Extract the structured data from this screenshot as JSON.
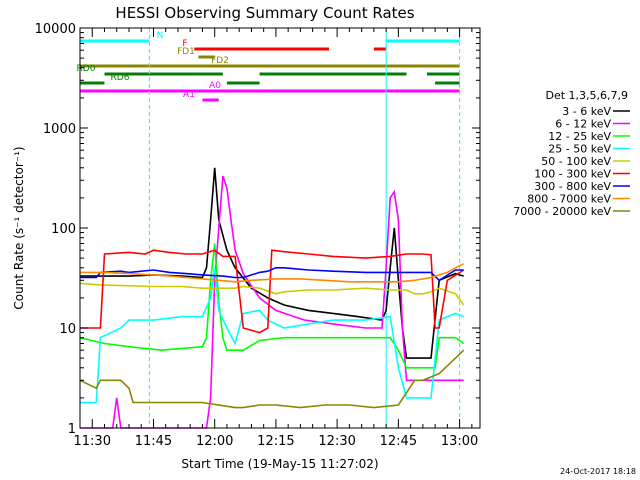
{
  "chart_data": {
    "type": "line",
    "title": "HESSI Observing Summary Count Rates",
    "xlabel": "Start Time (19-May-15 11:27:02)",
    "ylabel": "Count Rate (s⁻¹ detector⁻¹)",
    "yscale": "log",
    "ylim": [
      1,
      10000
    ],
    "xlim_minutes": [
      0,
      98
    ],
    "x_tick_labels": [
      "11:30",
      "11:45",
      "12:00",
      "12:15",
      "12:30",
      "12:45",
      "13:00"
    ],
    "x_tick_minutes": [
      3,
      18,
      33,
      48,
      63,
      78,
      93
    ],
    "y_tick_labels": [
      "1",
      "10",
      "100",
      "1000",
      "10000"
    ],
    "legend_title": "Det 1,3,5,6,7,9",
    "legend_position": "right",
    "series": [
      {
        "name": "3 - 6 keV",
        "color": "#000000",
        "x": [
          0,
          12,
          18,
          25,
          30,
          31,
          32,
          33,
          34,
          36,
          38,
          42,
          46,
          50,
          56,
          62,
          68,
          74,
          75,
          76,
          77,
          78,
          79,
          80,
          86,
          88,
          92,
          94
        ],
        "y": [
          33,
          33,
          34,
          33,
          32,
          40,
          120,
          400,
          120,
          60,
          40,
          25,
          20,
          17,
          15,
          14,
          13,
          12,
          15,
          40,
          100,
          30,
          10,
          5,
          5,
          30,
          35,
          33
        ]
      },
      {
        "name": "6 - 12 keV",
        "color": "#ff00ff",
        "x": [
          0,
          8,
          9,
          10,
          30,
          31,
          32,
          33,
          34,
          35,
          36,
          37,
          38,
          40,
          44,
          48,
          55,
          62,
          70,
          74,
          75,
          76,
          77,
          78,
          79,
          80,
          94
        ],
        "y": [
          1,
          1,
          2,
          1,
          1,
          1,
          2,
          30,
          100,
          330,
          250,
          120,
          60,
          35,
          20,
          15,
          12,
          11,
          10,
          10,
          40,
          200,
          230,
          120,
          10,
          3,
          3
        ]
      },
      {
        "name": "12 - 25 keV",
        "color": "#00ff00",
        "x": [
          0,
          6,
          12,
          20,
          30,
          31,
          32,
          33,
          34,
          35,
          36,
          38,
          40,
          44,
          50,
          56,
          62,
          70,
          76,
          78,
          80,
          86,
          87,
          88,
          92,
          94
        ],
        "y": [
          8,
          7,
          6.5,
          6,
          6.5,
          8,
          30,
          70,
          18,
          8,
          6,
          6,
          6,
          7.5,
          8,
          8,
          8,
          8,
          8,
          6,
          4,
          4,
          4,
          8,
          8,
          7
        ]
      },
      {
        "name": "25 - 50 keV",
        "color": "#00ffff",
        "x": [
          0,
          4,
          5,
          10,
          12,
          18,
          25,
          30,
          32,
          33,
          34,
          36,
          38,
          40,
          44,
          46,
          50,
          56,
          62,
          70,
          76,
          78,
          80,
          82,
          86,
          88,
          92,
          94
        ],
        "y": [
          1.8,
          1.8,
          8,
          10,
          12,
          12,
          13,
          13,
          20,
          40,
          15,
          10,
          7,
          14,
          15,
          12,
          10,
          11,
          12,
          12,
          13,
          4,
          2,
          2,
          2,
          12,
          14,
          13
        ]
      },
      {
        "name": "50 - 100 keV",
        "color": "#cccc00",
        "x": [
          0,
          5,
          18,
          25,
          30,
          35,
          38,
          40,
          44,
          48,
          50,
          56,
          62,
          70,
          76,
          80,
          82,
          84,
          86,
          88,
          92,
          94
        ],
        "y": [
          28,
          27,
          26,
          26,
          25,
          25,
          25,
          26,
          25,
          22,
          23,
          24,
          24,
          25,
          24,
          24,
          22,
          22,
          23,
          25,
          22,
          17
        ]
      },
      {
        "name": "100 - 300 keV",
        "color": "#ff0000",
        "x": [
          0,
          4,
          5,
          6,
          12,
          16,
          18,
          22,
          26,
          30,
          33,
          35,
          38,
          40,
          44,
          46,
          47,
          50,
          56,
          62,
          70,
          76,
          80,
          84,
          86,
          87,
          88,
          90,
          94
        ],
        "y": [
          10,
          10,
          10,
          55,
          57,
          55,
          60,
          57,
          55,
          55,
          60,
          52,
          52,
          10,
          9,
          10,
          60,
          58,
          55,
          52,
          50,
          52,
          55,
          55,
          54,
          10,
          10,
          30,
          38
        ]
      },
      {
        "name": "300 - 800 keV",
        "color": "#0000ff",
        "x": [
          0,
          4,
          5,
          10,
          12,
          18,
          22,
          26,
          30,
          35,
          38,
          40,
          44,
          46,
          48,
          50,
          56,
          62,
          70,
          76,
          80,
          84,
          86,
          88,
          92,
          94
        ],
        "y": [
          32,
          32,
          36,
          37,
          36,
          38,
          36,
          35,
          34,
          33,
          32,
          32,
          36,
          37,
          40,
          40,
          38,
          37,
          36,
          36,
          36,
          36,
          36,
          30,
          38,
          38
        ]
      },
      {
        "name": "800 - 7000 keV",
        "color": "#ff8800",
        "x": [
          0,
          6,
          12,
          18,
          22,
          26,
          30,
          34,
          38,
          42,
          48,
          54,
          60,
          66,
          72,
          78,
          82,
          86,
          88,
          90,
          92,
          94
        ],
        "y": [
          36,
          36,
          35,
          34,
          33,
          32,
          31,
          30,
          29,
          30,
          31,
          31,
          30,
          29,
          29,
          29,
          30,
          32,
          34,
          36,
          40,
          44
        ]
      },
      {
        "name": "7000 - 20000 keV",
        "color": "#888800",
        "x": [
          0,
          4,
          5,
          10,
          12,
          13,
          18,
          30,
          38,
          40,
          44,
          48,
          54,
          60,
          66,
          72,
          78,
          82,
          84,
          88,
          92,
          94
        ],
        "y": [
          3,
          2.5,
          3,
          3,
          2.5,
          1.8,
          1.8,
          1.8,
          1.6,
          1.6,
          1.7,
          1.7,
          1.6,
          1.7,
          1.7,
          1.6,
          1.7,
          3,
          3,
          3.5,
          5,
          6
        ]
      }
    ],
    "status_bars": [
      {
        "label": "N",
        "color": "#00ffff",
        "segments": [
          [
            0,
            17
          ],
          [
            75,
            93
          ]
        ]
      },
      {
        "label": "F",
        "color": "#ff0000",
        "segments": [
          [
            28,
            61
          ],
          [
            72,
            75
          ]
        ]
      },
      {
        "label": "FD1",
        "color": "#888800",
        "segments": [
          [
            29,
            33
          ]
        ]
      },
      {
        "label": "FD2",
        "color": "#888800",
        "segments": [
          [
            0,
            93
          ]
        ]
      },
      {
        "label": "RD0",
        "color": "#008000",
        "segments": [
          [
            6,
            35
          ],
          [
            44,
            80
          ],
          [
            85,
            93
          ]
        ]
      },
      {
        "label": "RD6",
        "color": "#008000",
        "segments": [
          [
            0,
            6
          ],
          [
            36,
            44
          ],
          [
            87,
            93
          ]
        ]
      },
      {
        "label": "A0",
        "color": "#ff00ff",
        "segments": [
          [
            0,
            93
          ]
        ]
      },
      {
        "label": "A1",
        "color": "#ff00ff",
        "segments": [
          [
            30,
            34
          ]
        ]
      }
    ],
    "saa_times": [
      0,
      17,
      75,
      93
    ]
  },
  "footer": {
    "timestamp": "24-Oct-2017 18:18"
  }
}
